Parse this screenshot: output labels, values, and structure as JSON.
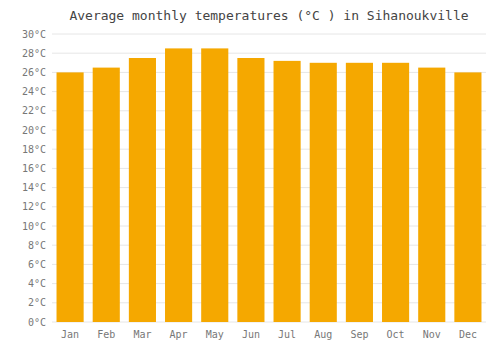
{
  "chart_data": {
    "type": "bar",
    "title": "Average monthly temperatures (°C ) in Sihanoukville",
    "categories": [
      "Jan",
      "Feb",
      "Mar",
      "Apr",
      "May",
      "Jun",
      "Jul",
      "Aug",
      "Sep",
      "Oct",
      "Nov",
      "Dec"
    ],
    "values": [
      26.0,
      26.5,
      27.5,
      28.5,
      28.5,
      27.5,
      27.2,
      27.0,
      27.0,
      27.0,
      26.5,
      26.0
    ],
    "color": "#F5A800",
    "ylim": [
      0,
      30
    ],
    "yticks": [
      {
        "value": 0,
        "label": "0°C"
      },
      {
        "value": 2,
        "label": "2°C"
      },
      {
        "value": 4,
        "label": "4°C"
      },
      {
        "value": 6,
        "label": "6°C"
      },
      {
        "value": 8,
        "label": "8°C"
      },
      {
        "value": 10,
        "label": "10°C"
      },
      {
        "value": 12,
        "label": "12°C"
      },
      {
        "value": 14,
        "label": "14°C"
      },
      {
        "value": 16,
        "label": "16°C"
      },
      {
        "value": 18,
        "label": "18°C"
      },
      {
        "value": 20,
        "label": "20°C"
      },
      {
        "value": 22,
        "label": "22°C"
      },
      {
        "value": 24,
        "label": "24°C"
      },
      {
        "value": 26,
        "label": "26°C"
      },
      {
        "value": 28,
        "label": "28°C"
      },
      {
        "value": 30,
        "label": "30°C"
      }
    ],
    "grid": true
  }
}
